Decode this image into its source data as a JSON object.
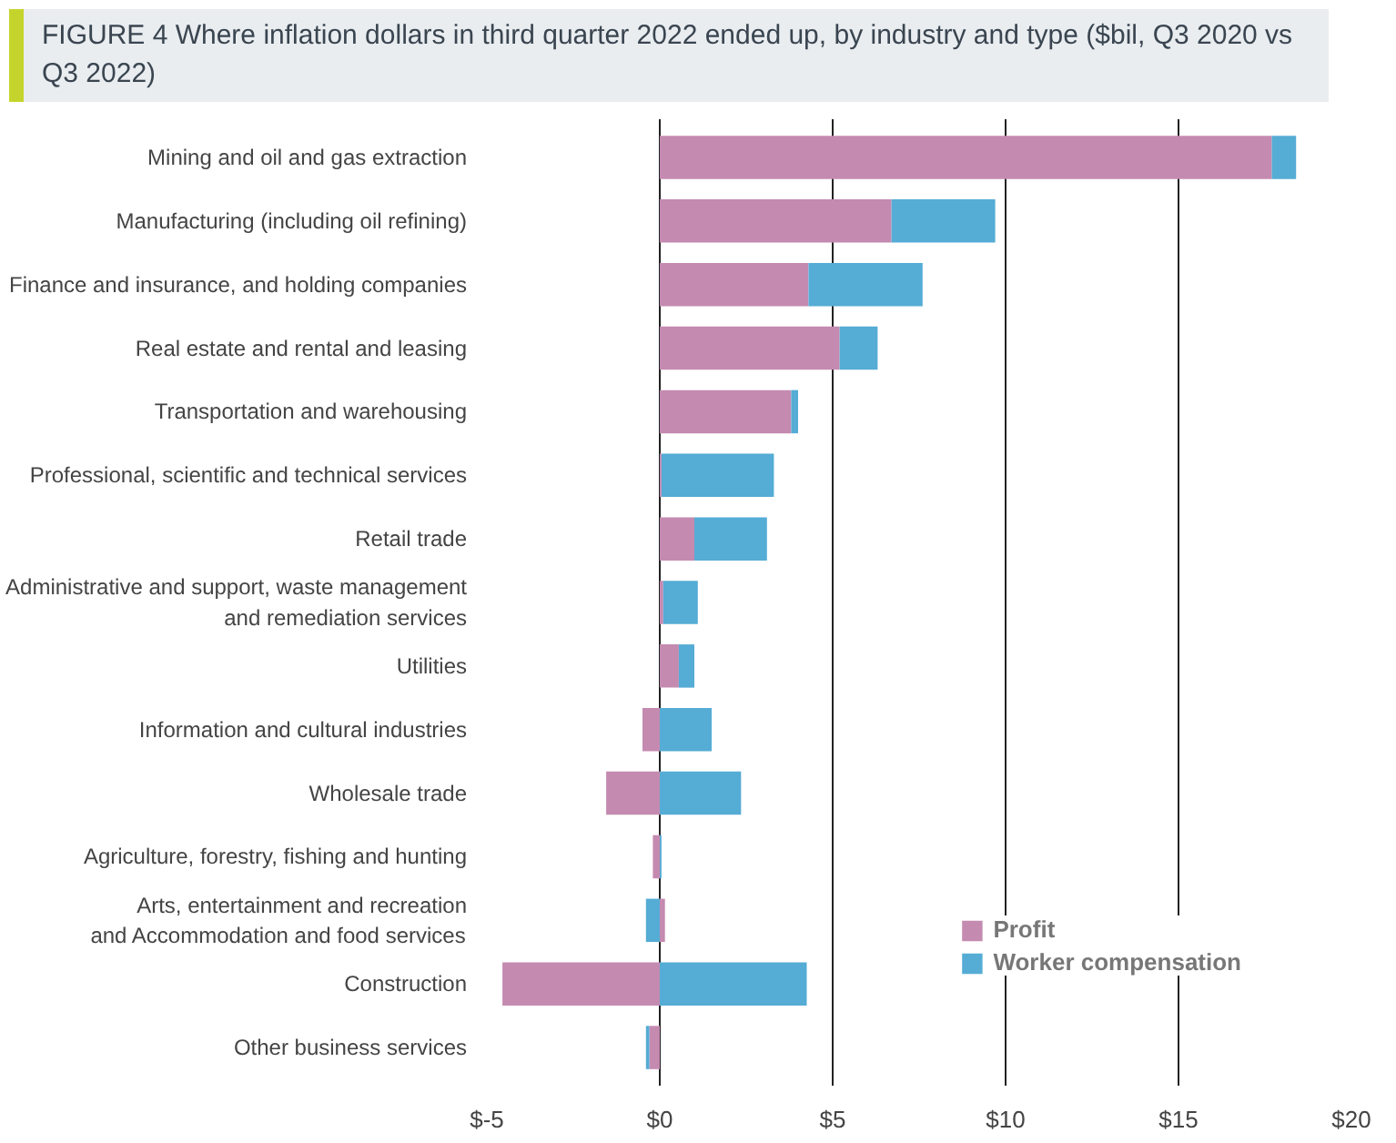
{
  "chart_data": {
    "type": "bar",
    "orientation": "horizontal",
    "stacked": true,
    "title": "FIGURE 4  Where inflation dollars in third quarter 2022 ended up, by industry and type ($bil, Q3 2020 vs Q3 2022)",
    "categories": [
      "Mining and oil and gas extraction",
      "Manufacturing (including oil refining)",
      "Finance and insurance, and holding companies",
      "Real estate and rental and leasing",
      "Transportation and warehousing",
      "Professional, scientific and technical services",
      "Retail trade",
      "Administrative and support, waste management\nand remediation services",
      "Utilities",
      "Information and cultural industries",
      "Wholesale trade",
      "Agriculture, forestry, fishing and hunting",
      "Arts, entertainment and recreation\nand Accommodation and food services",
      "Construction",
      "Other business services"
    ],
    "series": [
      {
        "name": "Profit",
        "color": "#c48ab0",
        "values": [
          17.7,
          6.7,
          4.3,
          5.2,
          3.8,
          0.05,
          1.0,
          0.1,
          0.55,
          -0.5,
          -1.55,
          -0.2,
          0.15,
          -4.55,
          -0.3
        ]
      },
      {
        "name": "Worker compensation",
        "color": "#55acd5",
        "values": [
          0.7,
          3.0,
          3.3,
          1.1,
          0.2,
          3.25,
          2.1,
          1.0,
          0.45,
          1.5,
          2.35,
          0.05,
          -0.4,
          4.25,
          -0.1
        ]
      }
    ],
    "xlim": [
      -5,
      20
    ],
    "xticks": [
      {
        "value": -5,
        "label": "$-5"
      },
      {
        "value": 0,
        "label": "$0"
      },
      {
        "value": 5,
        "label": "$5"
      },
      {
        "value": 10,
        "label": "$10"
      },
      {
        "value": 15,
        "label": "$15"
      },
      {
        "value": 20,
        "label": "$20"
      }
    ],
    "grid": "x",
    "legend": "bottom right"
  }
}
